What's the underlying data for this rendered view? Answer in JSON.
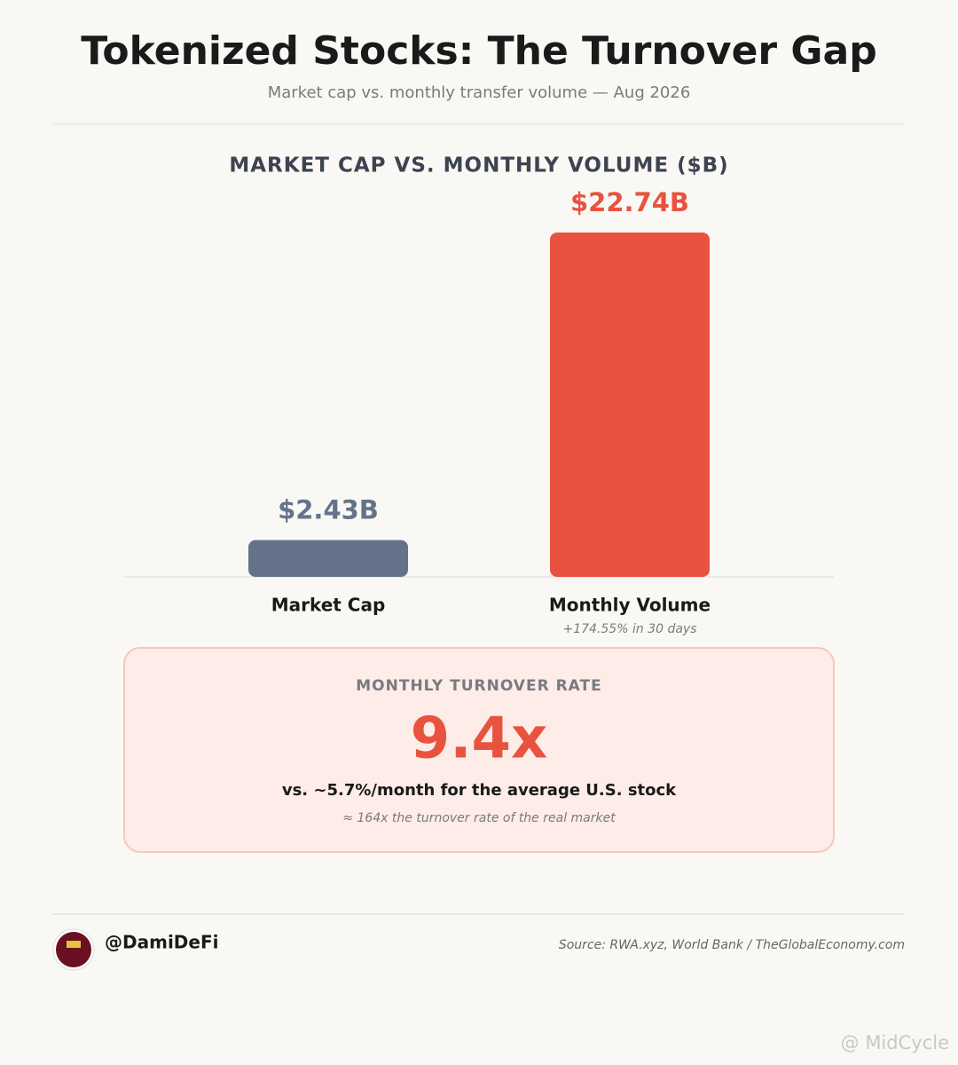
{
  "chart_data": {
    "type": "bar",
    "title": "Tokenized Stocks: The Turnover Gap",
    "subtitle": "Market cap vs. monthly transfer volume — Aug 2026",
    "chart_title": "MARKET CAP VS. MONTHLY VOLUME ($B)",
    "categories": [
      "Market Cap",
      "Monthly Volume"
    ],
    "values": [
      2.43,
      22.74
    ],
    "value_labels": [
      "$2.43B",
      "$22.74B"
    ],
    "colors": [
      "#65738a",
      "#e8533f"
    ],
    "annotation": "+174.55% in 30 days"
  },
  "callout": {
    "label": "MONTHLY TURNOVER RATE",
    "value": "9.4x",
    "comparison": "vs. ~5.7%/month for the average U.S. stock",
    "note": "≈ 164x the turnover rate of the real market"
  },
  "footer": {
    "handle": "@DamiDeFi",
    "source": "Source: RWA.xyz, World Bank / TheGlobalEconomy.com"
  },
  "watermark": "@ MidCycle"
}
